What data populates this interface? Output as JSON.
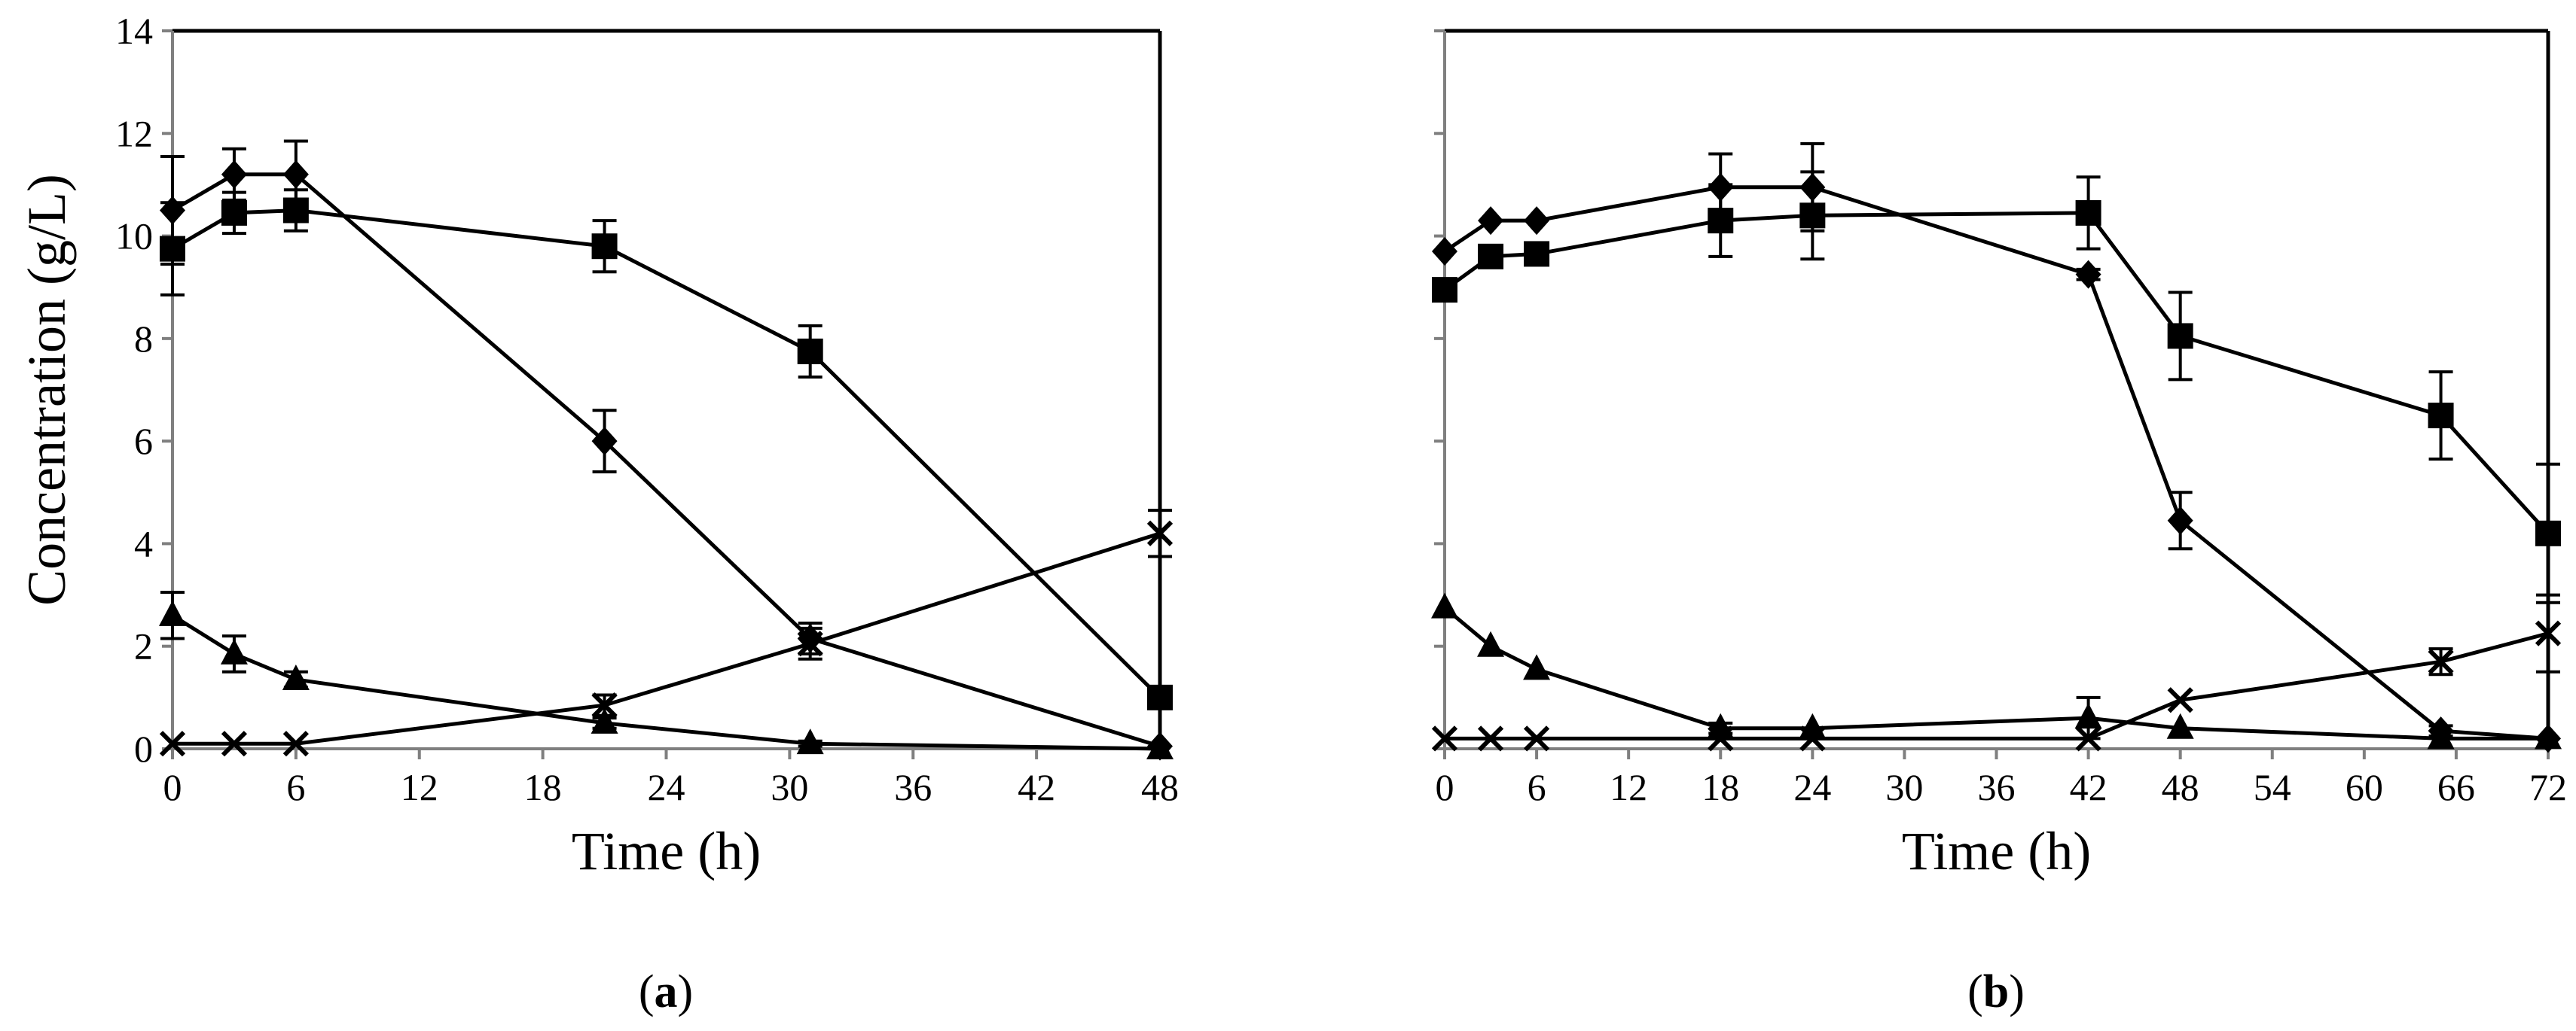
{
  "chart_data": [
    {
      "type": "line",
      "panel_label": "a",
      "xlabel": "Time (h)",
      "ylabel": "Concentration (g/L)",
      "xlim": [
        0,
        48
      ],
      "ylim": [
        0,
        14
      ],
      "xticks": [
        "0",
        "6",
        "12",
        "18",
        "24",
        "30",
        "36",
        "42",
        "48"
      ],
      "yticks": [
        "0",
        "2",
        "4",
        "6",
        "8",
        "10",
        "12",
        "14"
      ],
      "show_y_tick_labels": true,
      "grid": false,
      "legend": "none",
      "series": [
        {
          "marker": "diamond",
          "points": [
            {
              "x": 0,
              "y": 10.5,
              "err": 1.05
            },
            {
              "x": 3,
              "y": 11.2,
              "err": 0.5
            },
            {
              "x": 6,
              "y": 11.2,
              "err": 0.65
            },
            {
              "x": 21,
              "y": 6.0,
              "err": 0.6
            },
            {
              "x": 31,
              "y": 2.15,
              "err": 0.3
            },
            {
              "x": 48,
              "y": 0.05,
              "err": 0
            }
          ]
        },
        {
          "marker": "square",
          "points": [
            {
              "x": 0,
              "y": 9.75,
              "err": 0.9
            },
            {
              "x": 3,
              "y": 10.45,
              "err": 0.4
            },
            {
              "x": 6,
              "y": 10.5,
              "err": 0.4
            },
            {
              "x": 21,
              "y": 9.8,
              "err": 0.5
            },
            {
              "x": 31,
              "y": 7.75,
              "err": 0.5
            },
            {
              "x": 48,
              "y": 1.0,
              "err": 0
            }
          ]
        },
        {
          "marker": "triangle",
          "points": [
            {
              "x": 0,
              "y": 2.6,
              "err": 0.45
            },
            {
              "x": 3,
              "y": 1.85,
              "err": 0.35
            },
            {
              "x": 6,
              "y": 1.35,
              "err": 0.15
            },
            {
              "x": 21,
              "y": 0.5,
              "err": 0.1
            },
            {
              "x": 31,
              "y": 0.1,
              "err": 0.05
            },
            {
              "x": 48,
              "y": 0.0,
              "err": 0
            }
          ]
        },
        {
          "marker": "cross",
          "points": [
            {
              "x": 0,
              "y": 0.1,
              "err": 0
            },
            {
              "x": 3,
              "y": 0.1,
              "err": 0
            },
            {
              "x": 6,
              "y": 0.1,
              "err": 0
            },
            {
              "x": 21,
              "y": 0.85,
              "err": 0.2
            },
            {
              "x": 31,
              "y": 2.05,
              "err": 0.3
            },
            {
              "x": 48,
              "y": 4.2,
              "err": 0.45
            }
          ]
        }
      ]
    },
    {
      "type": "line",
      "panel_label": "b",
      "xlabel": "Time (h)",
      "ylabel": "",
      "xlim": [
        0,
        72
      ],
      "ylim": [
        0,
        14
      ],
      "xticks": [
        "0",
        "6",
        "12",
        "18",
        "24",
        "30",
        "36",
        "42",
        "48",
        "54",
        "60",
        "66",
        "72"
      ],
      "yticks": [
        "0",
        "2",
        "4",
        "6",
        "8",
        "10",
        "12",
        "14"
      ],
      "show_y_tick_labels": false,
      "grid": false,
      "legend": "none",
      "series": [
        {
          "marker": "diamond",
          "points": [
            {
              "x": 0,
              "y": 9.7,
              "err": 0
            },
            {
              "x": 3,
              "y": 10.3,
              "err": 0
            },
            {
              "x": 6,
              "y": 10.3,
              "err": 0
            },
            {
              "x": 18,
              "y": 10.95,
              "err": 0.65
            },
            {
              "x": 24,
              "y": 10.95,
              "err": 0.85
            },
            {
              "x": 42,
              "y": 9.25,
              "err": 0.1
            },
            {
              "x": 48,
              "y": 4.45,
              "err": 0.55
            },
            {
              "x": 65,
              "y": 0.35,
              "err": 0.1
            },
            {
              "x": 72,
              "y": 0.2,
              "err": 0
            }
          ]
        },
        {
          "marker": "square",
          "points": [
            {
              "x": 0,
              "y": 8.95,
              "err": 0
            },
            {
              "x": 3,
              "y": 9.6,
              "err": 0
            },
            {
              "x": 6,
              "y": 9.65,
              "err": 0
            },
            {
              "x": 18,
              "y": 10.3,
              "err": 0.7
            },
            {
              "x": 24,
              "y": 10.4,
              "err": 0.85
            },
            {
              "x": 42,
              "y": 10.45,
              "err": 0.7
            },
            {
              "x": 48,
              "y": 8.05,
              "err": 0.85
            },
            {
              "x": 65,
              "y": 6.5,
              "err": 0.85
            },
            {
              "x": 72,
              "y": 4.2,
              "err": 1.35
            }
          ]
        },
        {
          "marker": "triangle",
          "points": [
            {
              "x": 0,
              "y": 2.75,
              "err": 0
            },
            {
              "x": 3,
              "y": 2.0,
              "err": 0
            },
            {
              "x": 6,
              "y": 1.55,
              "err": 0
            },
            {
              "x": 18,
              "y": 0.4,
              "err": 0.1
            },
            {
              "x": 24,
              "y": 0.4,
              "err": 0
            },
            {
              "x": 42,
              "y": 0.6,
              "err": 0.4
            },
            {
              "x": 48,
              "y": 0.4,
              "err": 0
            },
            {
              "x": 65,
              "y": 0.2,
              "err": 0
            },
            {
              "x": 72,
              "y": 0.2,
              "err": 0
            }
          ]
        },
        {
          "marker": "cross",
          "points": [
            {
              "x": 0,
              "y": 0.2,
              "err": 0
            },
            {
              "x": 3,
              "y": 0.2,
              "err": 0
            },
            {
              "x": 6,
              "y": 0.2,
              "err": 0
            },
            {
              "x": 18,
              "y": 0.2,
              "err": 0
            },
            {
              "x": 24,
              "y": 0.2,
              "err": 0
            },
            {
              "x": 42,
              "y": 0.2,
              "err": 0
            },
            {
              "x": 48,
              "y": 0.95,
              "err": 0
            },
            {
              "x": 65,
              "y": 1.7,
              "err": 0.25
            },
            {
              "x": 72,
              "y": 2.25,
              "err": 0.75
            }
          ]
        }
      ]
    }
  ]
}
